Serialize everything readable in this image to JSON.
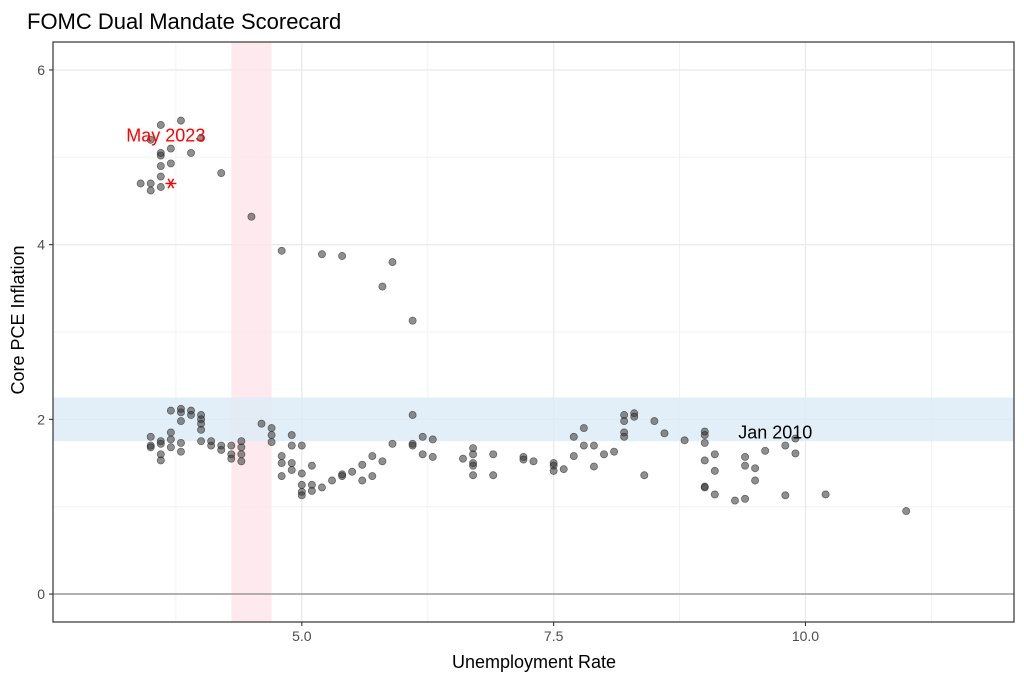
{
  "chart_data": {
    "type": "scatter",
    "title": "FOMC Dual Mandate Scorecard",
    "xlabel": "Unemployment Rate",
    "ylabel": "Core PCE Inflation",
    "xlim": [
      2.53,
      12.07
    ],
    "ylim": [
      -0.32,
      6.32
    ],
    "x_ticks": [
      5.0,
      7.5,
      10.0
    ],
    "x_tick_labels": [
      "5.0",
      "7.5",
      "10.0"
    ],
    "y_ticks": [
      0,
      2,
      4,
      6
    ],
    "y_tick_labels": [
      "0",
      "2",
      "4",
      "6"
    ],
    "grid": true,
    "unemployment_band": [
      4.3,
      4.7
    ],
    "inflation_band": [
      1.75,
      2.25
    ],
    "band_colors": {
      "unemployment": "#fde4ea",
      "inflation": "#dcebf6"
    },
    "point_color": "#333333",
    "highlight": {
      "label": "May 2023",
      "x": 3.7,
      "y": 4.7,
      "color": "#ff0000",
      "label_x": 3.65,
      "label_y": 5.25
    },
    "annotation": {
      "label": "Jan 2010",
      "x": 9.8,
      "y": 1.7,
      "color": "#000000",
      "label_x": 9.7,
      "label_y": 1.85
    },
    "points": [
      {
        "x": 3.5,
        "y": 4.7
      },
      {
        "x": 3.4,
        "y": 4.7
      },
      {
        "x": 3.5,
        "y": 4.62
      },
      {
        "x": 3.6,
        "y": 4.66
      },
      {
        "x": 3.6,
        "y": 4.78
      },
      {
        "x": 3.6,
        "y": 4.9
      },
      {
        "x": 3.7,
        "y": 4.93
      },
      {
        "x": 3.6,
        "y": 5.02
      },
      {
        "x": 3.6,
        "y": 5.05
      },
      {
        "x": 3.7,
        "y": 5.1
      },
      {
        "x": 3.5,
        "y": 5.2
      },
      {
        "x": 3.6,
        "y": 5.37
      },
      {
        "x": 3.8,
        "y": 5.42
      },
      {
        "x": 3.9,
        "y": 5.05
      },
      {
        "x": 4.0,
        "y": 5.22
      },
      {
        "x": 4.2,
        "y": 4.82
      },
      {
        "x": 4.5,
        "y": 4.32
      },
      {
        "x": 4.8,
        "y": 3.93
      },
      {
        "x": 5.2,
        "y": 3.89
      },
      {
        "x": 5.4,
        "y": 3.87
      },
      {
        "x": 5.9,
        "y": 3.8
      },
      {
        "x": 5.8,
        "y": 3.52
      },
      {
        "x": 6.1,
        "y": 3.13
      },
      {
        "x": 3.5,
        "y": 1.8
      },
      {
        "x": 3.5,
        "y": 1.7
      },
      {
        "x": 3.5,
        "y": 1.68
      },
      {
        "x": 3.6,
        "y": 1.75
      },
      {
        "x": 3.6,
        "y": 1.72
      },
      {
        "x": 3.6,
        "y": 1.6
      },
      {
        "x": 3.6,
        "y": 1.53
      },
      {
        "x": 3.7,
        "y": 1.77
      },
      {
        "x": 3.7,
        "y": 1.85
      },
      {
        "x": 3.7,
        "y": 1.68
      },
      {
        "x": 3.7,
        "y": 2.1
      },
      {
        "x": 3.8,
        "y": 2.08
      },
      {
        "x": 3.8,
        "y": 2.12
      },
      {
        "x": 3.8,
        "y": 1.98
      },
      {
        "x": 3.8,
        "y": 1.73
      },
      {
        "x": 3.8,
        "y": 1.63
      },
      {
        "x": 3.9,
        "y": 2.1
      },
      {
        "x": 3.9,
        "y": 2.05
      },
      {
        "x": 4.0,
        "y": 2.05
      },
      {
        "x": 4.0,
        "y": 2.0
      },
      {
        "x": 4.0,
        "y": 1.95
      },
      {
        "x": 4.0,
        "y": 1.88
      },
      {
        "x": 4.0,
        "y": 1.75
      },
      {
        "x": 4.1,
        "y": 1.75
      },
      {
        "x": 4.1,
        "y": 1.7
      },
      {
        "x": 4.2,
        "y": 1.7
      },
      {
        "x": 4.2,
        "y": 1.65
      },
      {
        "x": 4.3,
        "y": 1.7
      },
      {
        "x": 4.3,
        "y": 1.6
      },
      {
        "x": 4.3,
        "y": 1.55
      },
      {
        "x": 4.4,
        "y": 1.68
      },
      {
        "x": 4.4,
        "y": 1.6
      },
      {
        "x": 4.4,
        "y": 1.52
      },
      {
        "x": 4.4,
        "y": 1.75
      },
      {
        "x": 4.6,
        "y": 1.95
      },
      {
        "x": 4.7,
        "y": 1.9
      },
      {
        "x": 4.7,
        "y": 1.82
      },
      {
        "x": 4.7,
        "y": 1.74
      },
      {
        "x": 4.8,
        "y": 1.58
      },
      {
        "x": 4.8,
        "y": 1.5
      },
      {
        "x": 4.8,
        "y": 1.35
      },
      {
        "x": 4.9,
        "y": 1.82
      },
      {
        "x": 4.9,
        "y": 1.7
      },
      {
        "x": 4.9,
        "y": 1.5
      },
      {
        "x": 4.9,
        "y": 1.42
      },
      {
        "x": 5.0,
        "y": 1.7
      },
      {
        "x": 5.0,
        "y": 1.38
      },
      {
        "x": 5.0,
        "y": 1.25
      },
      {
        "x": 5.0,
        "y": 1.17
      },
      {
        "x": 5.0,
        "y": 1.13
      },
      {
        "x": 5.1,
        "y": 1.47
      },
      {
        "x": 5.1,
        "y": 1.25
      },
      {
        "x": 5.1,
        "y": 1.18
      },
      {
        "x": 5.2,
        "y": 1.22
      },
      {
        "x": 5.3,
        "y": 1.3
      },
      {
        "x": 5.4,
        "y": 1.37
      },
      {
        "x": 5.4,
        "y": 1.35
      },
      {
        "x": 5.5,
        "y": 1.4
      },
      {
        "x": 5.6,
        "y": 1.48
      },
      {
        "x": 5.6,
        "y": 1.3
      },
      {
        "x": 5.7,
        "y": 1.58
      },
      {
        "x": 5.7,
        "y": 1.35
      },
      {
        "x": 5.8,
        "y": 1.52
      },
      {
        "x": 5.9,
        "y": 1.72
      },
      {
        "x": 6.1,
        "y": 2.05
      },
      {
        "x": 6.1,
        "y": 1.72
      },
      {
        "x": 6.1,
        "y": 1.7
      },
      {
        "x": 6.2,
        "y": 1.8
      },
      {
        "x": 6.2,
        "y": 1.6
      },
      {
        "x": 6.3,
        "y": 1.77
      },
      {
        "x": 6.3,
        "y": 1.57
      },
      {
        "x": 6.6,
        "y": 1.55
      },
      {
        "x": 6.7,
        "y": 1.67
      },
      {
        "x": 6.7,
        "y": 1.6
      },
      {
        "x": 6.7,
        "y": 1.5
      },
      {
        "x": 6.7,
        "y": 1.47
      },
      {
        "x": 6.7,
        "y": 1.36
      },
      {
        "x": 6.9,
        "y": 1.6
      },
      {
        "x": 6.9,
        "y": 1.36
      },
      {
        "x": 7.2,
        "y": 1.57
      },
      {
        "x": 7.2,
        "y": 1.54
      },
      {
        "x": 7.3,
        "y": 1.52
      },
      {
        "x": 7.5,
        "y": 1.5
      },
      {
        "x": 7.5,
        "y": 1.47
      },
      {
        "x": 7.5,
        "y": 1.41
      },
      {
        "x": 7.6,
        "y": 1.43
      },
      {
        "x": 7.7,
        "y": 1.8
      },
      {
        "x": 7.7,
        "y": 1.58
      },
      {
        "x": 7.8,
        "y": 1.9
      },
      {
        "x": 7.8,
        "y": 1.7
      },
      {
        "x": 7.9,
        "y": 1.7
      },
      {
        "x": 7.9,
        "y": 1.46
      },
      {
        "x": 8.0,
        "y": 1.6
      },
      {
        "x": 8.1,
        "y": 1.63
      },
      {
        "x": 8.2,
        "y": 2.05
      },
      {
        "x": 8.2,
        "y": 1.98
      },
      {
        "x": 8.2,
        "y": 1.85
      },
      {
        "x": 8.2,
        "y": 1.8
      },
      {
        "x": 8.3,
        "y": 2.07
      },
      {
        "x": 8.3,
        "y": 2.03
      },
      {
        "x": 8.4,
        "y": 1.36
      },
      {
        "x": 8.5,
        "y": 1.98
      },
      {
        "x": 8.6,
        "y": 1.84
      },
      {
        "x": 8.8,
        "y": 1.76
      },
      {
        "x": 9.0,
        "y": 1.86
      },
      {
        "x": 9.0,
        "y": 1.82
      },
      {
        "x": 9.0,
        "y": 1.73
      },
      {
        "x": 9.0,
        "y": 1.53
      },
      {
        "x": 9.0,
        "y": 1.23
      },
      {
        "x": 9.0,
        "y": 1.22
      },
      {
        "x": 9.1,
        "y": 1.6
      },
      {
        "x": 9.1,
        "y": 1.41
      },
      {
        "x": 9.1,
        "y": 1.14
      },
      {
        "x": 9.3,
        "y": 1.07
      },
      {
        "x": 9.4,
        "y": 1.57
      },
      {
        "x": 9.4,
        "y": 1.47
      },
      {
        "x": 9.4,
        "y": 1.09
      },
      {
        "x": 9.5,
        "y": 1.44
      },
      {
        "x": 9.5,
        "y": 1.3
      },
      {
        "x": 9.6,
        "y": 1.64
      },
      {
        "x": 9.8,
        "y": 1.7
      },
      {
        "x": 9.8,
        "y": 1.13
      },
      {
        "x": 9.9,
        "y": 1.78
      },
      {
        "x": 9.9,
        "y": 1.61
      },
      {
        "x": 10.2,
        "y": 1.14
      },
      {
        "x": 11.0,
        "y": 0.95
      }
    ]
  }
}
